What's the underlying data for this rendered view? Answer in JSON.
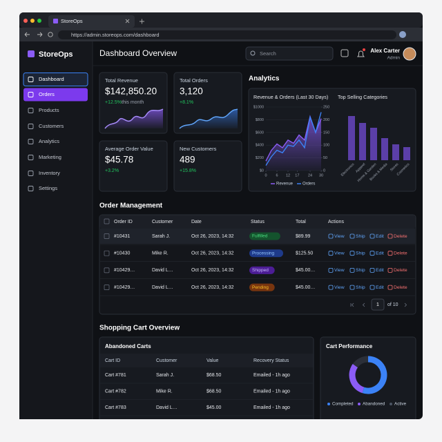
{
  "browser": {
    "tab": "StoreOps",
    "url": "https://admin.storeops.com/dashboard"
  },
  "sidebar": {
    "brand": "StoreOps",
    "menu": [
      "Dashboard",
      "Orders",
      "Products",
      "Customers",
      "Analytics",
      "Marketing",
      "Inventory",
      "Settings"
    ]
  },
  "header": {
    "title": "Dashboard Overview",
    "search": "Search",
    "user": "Alex Carter",
    "role": "Admin"
  },
  "stats": [
    {
      "label": "Total Revenue",
      "value": "$142,850.20",
      "change": "+12.5%",
      "note": "this month"
    },
    {
      "label": "Total Orders",
      "value": "3,120",
      "change": "+8.1%"
    },
    {
      "label": "Average Order Value",
      "value": "$45.78",
      "change": "+3.2%"
    },
    {
      "label": "New Customers",
      "value": "489",
      "change": "+15.8%"
    }
  ],
  "analytics_title": "Analytics",
  "chart_data": [
    {
      "type": "line",
      "title": "Revenue & Orders (Last 30 Days)",
      "x": [
        0,
        3,
        6,
        9,
        12,
        15,
        18,
        21,
        24,
        27,
        30
      ],
      "xlim": [
        0,
        30
      ],
      "xticks": [
        0,
        6,
        12,
        17,
        24,
        30
      ],
      "ylim": [
        0,
        1000
      ],
      "yticks": [
        {
          "value": 0,
          "label": "$0"
        },
        {
          "value": 200,
          "label": "$200"
        },
        {
          "value": 400,
          "label": "$400"
        },
        {
          "value": 600,
          "label": "$600"
        },
        {
          "value": 800,
          "label": "$800"
        },
        {
          "value": 1000,
          "label": "$1000"
        }
      ],
      "y2lim": [
        0,
        250
      ],
      "y2ticks": [
        0,
        50,
        100,
        150,
        200,
        250
      ],
      "grid": true,
      "series": [
        {
          "name": "Revenue",
          "color": "#8b5cf6",
          "values": [
            150,
            320,
            420,
            360,
            480,
            430,
            560,
            480,
            850,
            600,
            820
          ]
        },
        {
          "name": "Orders",
          "color": "#3b82f6",
          "axis": "y2",
          "values": [
            20,
            55,
            80,
            70,
            100,
            95,
            120,
            90,
            210,
            150,
            230
          ]
        }
      ]
    },
    {
      "type": "bar",
      "title": "Top Selling Categories",
      "categories": [
        "Electronics",
        "Apparel",
        "Home & Garden",
        "Books & Media",
        "Stores",
        "Cosmetics"
      ],
      "values": [
        64,
        54,
        47,
        32,
        23,
        19
      ],
      "color": "#5b3fa8"
    },
    {
      "type": "pie",
      "title": "Cart Performance",
      "categories": [
        "Completed",
        "Abandoned",
        "Active"
      ],
      "values": [
        55,
        30,
        15
      ],
      "colors": [
        "#3b82f6",
        "#8b5cf6",
        "#2b2f38"
      ]
    }
  ],
  "orders": {
    "title": "Order Management",
    "columns": [
      "Order ID",
      "Customer",
      "Date",
      "Status",
      "Total",
      "Actions"
    ],
    "rows": [
      [
        "#10431",
        "Sarah J.",
        "Oct 26, 2023, 14:32",
        "Fulfilled",
        "$89.99"
      ],
      [
        "#10430",
        "Mike R.",
        "Oct 26, 2023, 14:32",
        "Processing",
        "$125.50"
      ],
      [
        "#10429…",
        "David L…",
        "Oct 26, 2023, 14:32",
        "Shipped",
        "$45.00…"
      ],
      [
        "#10429…",
        "David L…",
        "Oct 26, 2023, 14:32",
        "Pending",
        "$45.00…"
      ]
    ],
    "actions": [
      "View",
      "Ship",
      "Edit",
      "Delete"
    ],
    "page": "1",
    "pages": "of 10"
  },
  "carts": {
    "title": "Shopping Cart Overview",
    "panel": "Abandoned Carts",
    "columns": [
      "Cart ID",
      "Customer",
      "Value",
      "Recovery Status"
    ],
    "rows": [
      [
        "Cart #781",
        "Sarah J.",
        "$68.50",
        "Emailed - 1h ago"
      ],
      [
        "Cart #782",
        "Mike R.",
        "$68.50",
        "Emailed - 1h ago"
      ],
      [
        "Cart #783",
        "David L…",
        "$45.00",
        "Emailed - 1h ago"
      ]
    ]
  }
}
